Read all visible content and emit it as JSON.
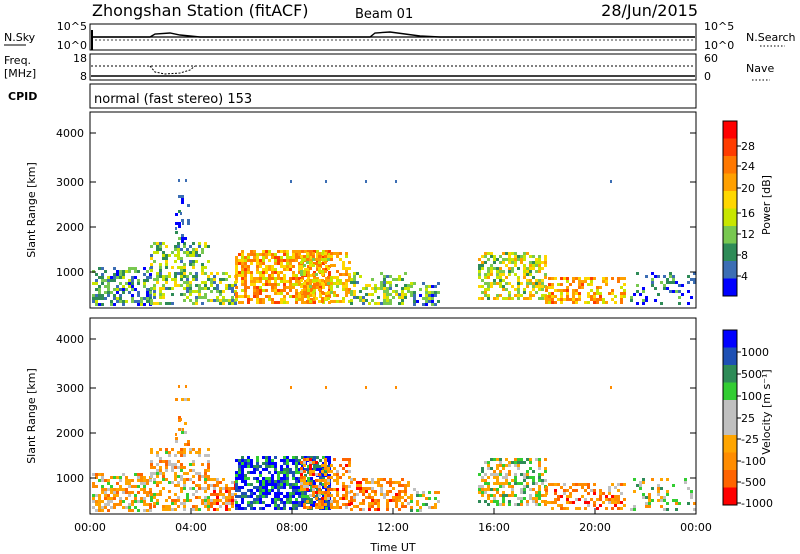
{
  "header": {
    "station": "Zhongshan Station (fitACF)",
    "beam": "Beam 01",
    "date": "28/Jun/2015"
  },
  "top_panel": {
    "left_label": "N.Sky",
    "right_label": "N.Search",
    "left_ticks": [
      "10^5",
      "10^0"
    ],
    "right_ticks": [
      "10^5",
      "10^0"
    ]
  },
  "freq_panel": {
    "left_label_line1": "Freq.",
    "left_label_line2": "[MHz]",
    "right_label": "Nave",
    "left_ticks": [
      "18",
      "8"
    ],
    "right_ticks": [
      "60",
      "0"
    ]
  },
  "cpid": {
    "label": "CPID",
    "text": "normal (fast stereo) 153"
  },
  "chart_data": [
    {
      "type": "heatmap",
      "ylabel": "Slant Range [km]",
      "xlabel": "",
      "y_ticks": [
        "4000",
        "3000",
        "2000",
        "1000"
      ],
      "colorbar_label": "Power [dB]",
      "colorbar_ticks": [
        "28",
        "24",
        "20",
        "16",
        "12",
        "8",
        "4"
      ],
      "colorbar_colors": [
        "#ff0000",
        "#ff3c00",
        "#ff7800",
        "#ffa000",
        "#ffd700",
        "#c8e600",
        "#78c850",
        "#2e8b57",
        "#3c6eb4",
        "#0000ff"
      ]
    },
    {
      "type": "heatmap",
      "ylabel": "Slant Range [km]",
      "xlabel": "Time UT",
      "y_ticks": [
        "4000",
        "3000",
        "2000",
        "1000"
      ],
      "x_ticks": [
        "00:00",
        "04:00",
        "08:00",
        "12:00",
        "16:00",
        "20:00",
        "00:00"
      ],
      "colorbar_label": "Velocity [m s⁻¹]",
      "colorbar_ticks": [
        "1000",
        "500",
        "100",
        "25",
        "-25",
        "-100",
        "-500",
        "-1000"
      ],
      "colorbar_colors": [
        "#0000ff",
        "#1e50b4",
        "#2e8b57",
        "#32cd32",
        "#c0c0c0",
        "#c0c0c0",
        "#ffa500",
        "#ff8c00",
        "#ff6400",
        "#ff0000"
      ]
    }
  ]
}
